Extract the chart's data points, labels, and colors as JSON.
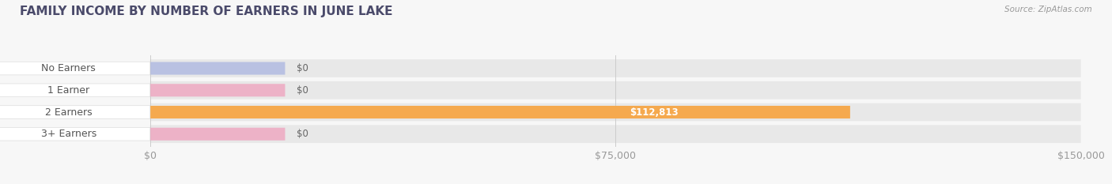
{
  "title": "FAMILY INCOME BY NUMBER OF EARNERS IN JUNE LAKE",
  "source": "Source: ZipAtlas.com",
  "categories": [
    "No Earners",
    "1 Earner",
    "2 Earners",
    "3+ Earners"
  ],
  "values": [
    0,
    0,
    112813,
    0
  ],
  "xlim": [
    0,
    150000
  ],
  "xticks": [
    0,
    75000,
    150000
  ],
  "xticklabels": [
    "$0",
    "$75,000",
    "$150,000"
  ],
  "bar_colors": [
    "#aab4e0",
    "#f0a0bc",
    "#f5a94e",
    "#f0a0bc"
  ],
  "bar_height": 0.58,
  "background_color": "#f7f7f7",
  "value_labels": [
    "$0",
    "$0",
    "$112,813",
    "$0"
  ],
  "title_color": "#4a4a6a",
  "tick_color": "#999999",
  "source_color": "#999999",
  "label_fontsize": 9,
  "title_fontsize": 11,
  "value_fontsize": 8.5,
  "row_bg": "#e8e8e8",
  "label_box_color": "white",
  "label_text_color": "#555555"
}
